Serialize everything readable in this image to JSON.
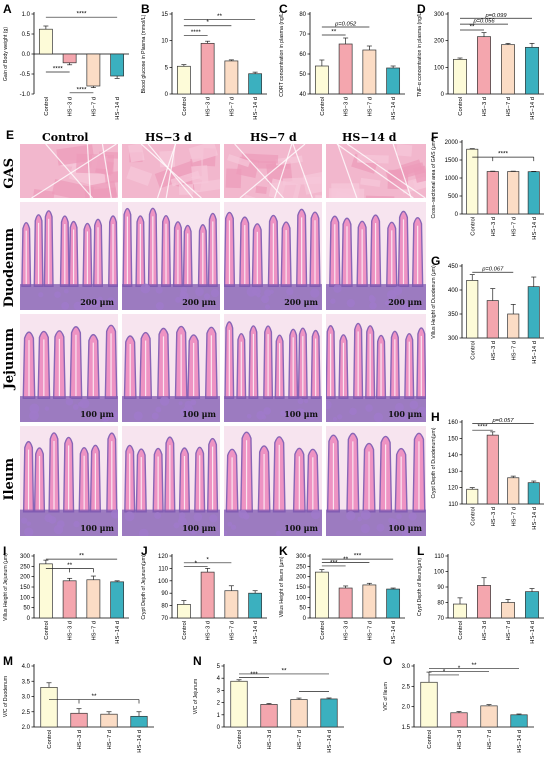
{
  "histology": {
    "panel_label": "E",
    "group_labels": [
      "Control",
      "HS−3 d",
      "HS−7 d",
      "HS−14 d"
    ],
    "rows": [
      {
        "label": "GAS",
        "scale": "",
        "tissue": "muscle"
      },
      {
        "label": "Duodenum",
        "scale": "200 μm",
        "tissue": "villi"
      },
      {
        "label": "Jejunum",
        "scale": "100 μm",
        "tissue": "villi"
      },
      {
        "label": "Ileum",
        "scale": "100 μm",
        "tissue": "villi"
      }
    ]
  },
  "colors": {
    "Control": "#fdfbd8",
    "HS-3 d": "#f4a6ae",
    "HS-7 d": "#fbdcc5",
    "HS-14 d": "#3bb0bf",
    "tissue_pink": "#ee8bbf",
    "tissue_purple": "#7d58b0"
  },
  "chart_data": [
    {
      "id": "A",
      "type": "bar",
      "ylabel": "Gain of Body weight (g)",
      "categories": [
        "Control",
        "HS−3 d",
        "HS−7 d",
        "HS−14 d"
      ],
      "values": [
        0.62,
        -0.22,
        -0.8,
        -0.55
      ],
      "errors": [
        0.08,
        0.05,
        0.04,
        0.06
      ],
      "ylim": [
        -1.0,
        1.0
      ],
      "ticks": [
        -1.0,
        -0.5,
        0.0,
        0.5,
        1.0
      ],
      "tick_labels": [
        "-1.0",
        "-0.5",
        "0.0",
        "0.5",
        "1.0"
      ],
      "sig": [
        {
          "from": 0,
          "to": 3,
          "text": "****",
          "level": 0.92
        },
        {
          "from": 0,
          "to": 1,
          "text": "****",
          "level": -0.45
        },
        {
          "from": 1,
          "to": 2,
          "text": "****",
          "level": -0.97
        }
      ]
    },
    {
      "id": "B",
      "type": "bar",
      "ylabel": "Blood glucose in Plasma (mmol/L)",
      "categories": [
        "Control",
        "HS−3 d",
        "HS−7 d",
        "HS−14 d"
      ],
      "values": [
        5.2,
        9.5,
        6.2,
        3.8
      ],
      "errors": [
        0.3,
        0.4,
        0.2,
        0.3
      ],
      "ylim": [
        0,
        15
      ],
      "ticks": [
        0,
        5,
        10,
        15
      ],
      "tick_labels": [
        "0",
        "5",
        "10",
        "15"
      ],
      "sig": [
        {
          "from": 0,
          "to": 3,
          "text": "**",
          "level": 14.0
        },
        {
          "from": 0,
          "to": 2,
          "text": "*",
          "level": 12.8
        },
        {
          "from": 0,
          "to": 1,
          "text": "****",
          "level": 11.0
        }
      ]
    },
    {
      "id": "C",
      "type": "bar",
      "ylabel": "CORT concentration in plasma (ng/L)",
      "categories": [
        "Control",
        "HS−3 d",
        "HS−7 d",
        "HS−14 d"
      ],
      "values": [
        54,
        65,
        62,
        53
      ],
      "errors": [
        3,
        3,
        2,
        1
      ],
      "ylim": [
        40,
        80
      ],
      "ticks": [
        40,
        50,
        60,
        70,
        80
      ],
      "tick_labels": [
        "40",
        "50",
        "60",
        "70",
        "80"
      ],
      "sig": [
        {
          "from": 0,
          "to": 1,
          "text": "**",
          "level": 69.5
        },
        {
          "from": 0,
          "to": 2,
          "text": "p=0.052",
          "level": 73.5
        }
      ]
    },
    {
      "id": "D",
      "type": "bar",
      "ylabel": "TNF-α concentration in plasma (ng/L)",
      "categories": [
        "Control",
        "HS−3 d",
        "HS−7 d",
        "HS−14 d"
      ],
      "values": [
        130,
        215,
        185,
        175
      ],
      "errors": [
        5,
        15,
        5,
        15
      ],
      "ylim": [
        0,
        300
      ],
      "ticks": [
        0,
        100,
        200,
        300
      ],
      "tick_labels": [
        "0",
        "100",
        "200",
        "300"
      ],
      "sig": [
        {
          "from": 0,
          "to": 1,
          "text": "**",
          "level": 240
        },
        {
          "from": 0,
          "to": 2,
          "text": "p=0.056",
          "level": 262
        },
        {
          "from": 0,
          "to": 3,
          "text": "p=0.099",
          "level": 284
        }
      ]
    },
    {
      "id": "F",
      "type": "bar",
      "ylabel": "Cross−sectional area of GAS (μm²)",
      "categories": [
        "Control",
        "HS−3 d",
        "HS−7 d",
        "HS−14 d"
      ],
      "values": [
        1800,
        1180,
        1180,
        1175
      ],
      "errors": [
        15,
        10,
        10,
        10
      ],
      "ylim": [
        0,
        2000
      ],
      "ticks": [
        0,
        500,
        1000,
        1500,
        2000
      ],
      "tick_labels": [
        "0",
        "500",
        "1000",
        "1500",
        "2000"
      ],
      "sig": [
        {
          "from": 0,
          "to": 3,
          "text": "****",
          "level": 1580,
          "bracket": [
            1,
            3
          ]
        }
      ]
    },
    {
      "id": "G",
      "type": "bar",
      "ylabel": "Villus Height of Duodenum (μm)",
      "categories": [
        "Control",
        "HS−3 d",
        "HS−7 d",
        "HS−14 d"
      ],
      "values": [
        420,
        378,
        350,
        407
      ],
      "errors": [
        12,
        25,
        20,
        20
      ],
      "ylim": [
        300,
        450
      ],
      "ticks": [
        300,
        350,
        400,
        450
      ],
      "tick_labels": [
        "300",
        "350",
        "400",
        "450"
      ],
      "sig": [
        {
          "from": 0,
          "to": 2,
          "text": "p=0.067",
          "level": 437
        }
      ]
    },
    {
      "id": "H",
      "type": "bar",
      "ylabel": "Crypt Depth of Duodenum(μm)",
      "categories": [
        "Control",
        "HS−3 d",
        "HS−7 d",
        "HS−14 d"
      ],
      "values": [
        119,
        152,
        126,
        123
      ],
      "errors": [
        1,
        2,
        1,
        1
      ],
      "ylim": [
        110,
        160
      ],
      "ticks": [
        110,
        120,
        130,
        140,
        150,
        160
      ],
      "tick_labels": [
        "110",
        "120",
        "130",
        "140",
        "150",
        "160"
      ],
      "sig": [
        {
          "from": 0,
          "to": 1,
          "text": "****",
          "level": 155
        },
        {
          "from": 0,
          "to": 3,
          "text": "p=0.057",
          "level": 159
        }
      ]
    },
    {
      "id": "I",
      "type": "bar",
      "ylabel": "Villus Height of Jejunum (μm)",
      "categories": [
        "Control",
        "HS−3 d",
        "HS−7 d",
        "HS−14 d"
      ],
      "values": [
        262,
        180,
        185,
        175
      ],
      "errors": [
        18,
        12,
        18,
        5
      ],
      "ylim": [
        0,
        300
      ],
      "ticks": [
        0,
        50,
        100,
        150,
        200,
        250,
        300
      ],
      "tick_labels": [
        "0",
        "50",
        "100",
        "150",
        "200",
        "250",
        "300"
      ],
      "sig": [
        {
          "from": 0,
          "to": 3,
          "text": "**",
          "level": 285
        },
        {
          "from": 0,
          "to": 2,
          "text": "**",
          "level": 240,
          "bracket": [
            1,
            2
          ]
        }
      ]
    },
    {
      "id": "J",
      "type": "bar",
      "ylabel": "Crypt Depth of Jejunum(μm)",
      "categories": [
        "Control",
        "HS−3 d",
        "HS−7 d",
        "HS−14 d"
      ],
      "values": [
        81,
        107,
        92,
        90
      ],
      "errors": [
        3,
        3,
        4,
        2
      ],
      "ylim": [
        70,
        120
      ],
      "ticks": [
        70,
        80,
        90,
        100,
        110,
        120
      ],
      "tick_labels": [
        "70",
        "80",
        "90",
        "100",
        "110",
        "120"
      ],
      "sig": [
        {
          "from": 0,
          "to": 2,
          "text": "*",
          "level": 114.5
        },
        {
          "from": 0,
          "to": 1,
          "text": "*",
          "level": 111.5
        }
      ]
    },
    {
      "id": "K",
      "type": "bar",
      "ylabel": "Villus Height of Ileum (μm)",
      "categories": [
        "Control",
        "HS−3 d",
        "HS−7 d",
        "HS−14 d"
      ],
      "values": [
        222,
        145,
        160,
        140
      ],
      "errors": [
        12,
        10,
        8,
        5
      ],
      "ylim": [
        0,
        300
      ],
      "ticks": [
        0,
        50,
        100,
        150,
        200,
        250,
        300
      ],
      "tick_labels": [
        "0",
        "50",
        "100",
        "150",
        "200",
        "250",
        "300"
      ],
      "sig": [
        {
          "from": 0,
          "to": 3,
          "text": "***",
          "level": 285
        },
        {
          "from": 0,
          "to": 2,
          "text": "**",
          "level": 268
        },
        {
          "from": 0,
          "to": 1,
          "text": "***",
          "level": 252
        }
      ]
    },
    {
      "id": "L",
      "type": "bar",
      "ylabel": "Crypt Depth of Ileum(μm)",
      "categories": [
        "Control",
        "HS−3 d",
        "HS−7 d",
        "HS−14 d"
      ],
      "values": [
        79,
        91,
        80,
        87
      ],
      "errors": [
        4,
        5,
        2,
        2
      ],
      "ylim": [
        70,
        110
      ],
      "ticks": [
        70,
        80,
        90,
        100,
        110
      ],
      "tick_labels": [
        "70",
        "80",
        "90",
        "100",
        "110"
      ],
      "sig": []
    },
    {
      "id": "M",
      "type": "bar",
      "ylabel": "V/C of Duodenum",
      "categories": [
        "Control",
        "HS−3 d",
        "HS−7 d",
        "HS−14 d"
      ],
      "values": [
        3.3,
        2.45,
        2.42,
        2.35
      ],
      "errors": [
        0.15,
        0.15,
        0.08,
        0.15
      ],
      "ylim": [
        2.0,
        4.0
      ],
      "ticks": [
        2.0,
        2.5,
        3.0,
        3.5,
        4.0
      ],
      "tick_labels": [
        "2.0",
        "2.5",
        "3.0",
        "3.5",
        "4.0"
      ],
      "sig": [
        {
          "from": 0,
          "to": 3,
          "text": "**",
          "level": 2.9,
          "bracket": [
            1,
            3
          ]
        }
      ]
    },
    {
      "id": "N",
      "type": "bar",
      "ylabel": "V/C of Jejunum",
      "categories": [
        "Control",
        "HS−3 d",
        "HS−7 d",
        "HS−14 d"
      ],
      "values": [
        3.75,
        1.85,
        2.25,
        2.3
      ],
      "errors": [
        0.12,
        0.08,
        0.12,
        0.08
      ],
      "ylim": [
        0,
        5
      ],
      "ticks": [
        0,
        1,
        2,
        3,
        4,
        5
      ],
      "tick_labels": [
        "0",
        "1",
        "2",
        "3",
        "4",
        "5"
      ],
      "sig": [
        {
          "from": 0,
          "to": 1,
          "text": "***",
          "level": 4.05
        },
        {
          "from": 0,
          "to": 3,
          "text": "**",
          "level": 4.35
        },
        {
          "from": 2,
          "to": 3,
          "text": "",
          "level": 2.9
        }
      ]
    },
    {
      "id": "O",
      "type": "bar",
      "ylabel": "V/C of Ileum",
      "categories": [
        "Control",
        "HS−3 d",
        "HS−7 d",
        "HS−14 d"
      ],
      "values": [
        2.6,
        1.85,
        2.02,
        1.8
      ],
      "errors": [
        0.25,
        0.03,
        0.03,
        0.02
      ],
      "ylim": [
        1.5,
        3.0
      ],
      "ticks": [
        1.5,
        2.0,
        2.5,
        3.0
      ],
      "tick_labels": [
        "1.5",
        "2.0",
        "2.5",
        "3.0"
      ],
      "sig": [
        {
          "from": 0,
          "to": 1,
          "text": "*",
          "level": 2.78
        },
        {
          "from": 0,
          "to": 2,
          "text": "*",
          "level": 2.86
        },
        {
          "from": 0,
          "to": 3,
          "text": "**",
          "level": 2.94
        }
      ]
    }
  ]
}
